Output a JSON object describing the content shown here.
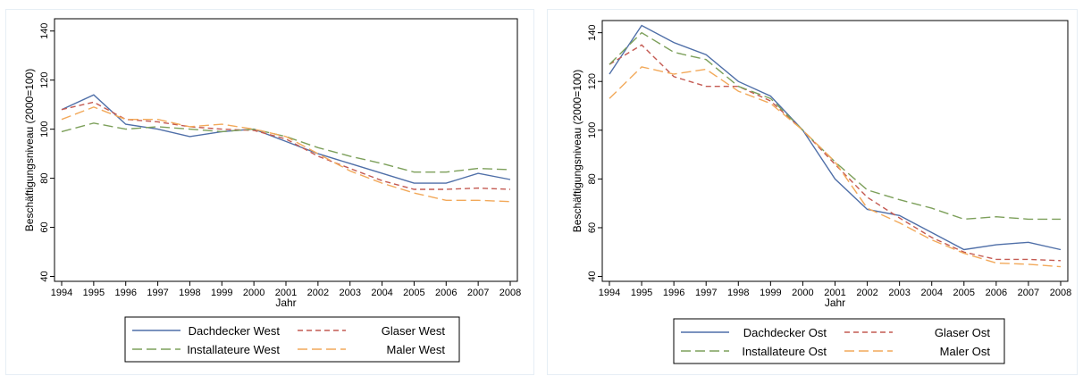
{
  "chart_data": [
    {
      "type": "line",
      "title": "",
      "xlabel": "Jahr",
      "ylabel": "Beschäftigungsniveau (2000=100)",
      "ylim": [
        38,
        145
      ],
      "yticks": [
        40,
        60,
        80,
        100,
        120,
        140
      ],
      "x": [
        1994,
        1995,
        1996,
        1997,
        1998,
        1999,
        2000,
        2001,
        2002,
        2003,
        2004,
        2005,
        2006,
        2007,
        2008
      ],
      "grid": false,
      "legend_position": "bottom",
      "series": [
        {
          "name": "Dachdecker West",
          "color": "#4f6fa8",
          "dash": "solid",
          "values": [
            108,
            114,
            102,
            100,
            97,
            99,
            100,
            95,
            90,
            86,
            82,
            78,
            78,
            82,
            79.5
          ]
        },
        {
          "name": "Glaser West",
          "color": "#c45a52",
          "dash": "short",
          "values": [
            108,
            111,
            104,
            103,
            101,
            100,
            99.5,
            96,
            89,
            84,
            79,
            75.5,
            75.5,
            76,
            75.5
          ]
        },
        {
          "name": "Installateure West",
          "color": "#7da05b",
          "dash": "long",
          "values": [
            99,
            102.5,
            100,
            101,
            100,
            99,
            100,
            97,
            92.5,
            89,
            86,
            82.5,
            82.5,
            84,
            83.5
          ]
        },
        {
          "name": "Maler West",
          "color": "#f2a95a",
          "dash": "long",
          "values": [
            104,
            109,
            104,
            104,
            101,
            102,
            100,
            97,
            90,
            83,
            78,
            74,
            71,
            71,
            70.5
          ]
        }
      ]
    },
    {
      "type": "line",
      "title": "",
      "xlabel": "Jahr",
      "ylabel": "Beschäftigungsniveau (2000=100)",
      "ylim": [
        38,
        145
      ],
      "yticks": [
        40,
        60,
        80,
        100,
        120,
        140
      ],
      "x": [
        1994,
        1995,
        1996,
        1997,
        1998,
        1999,
        2000,
        2001,
        2002,
        2003,
        2004,
        2005,
        2006,
        2007,
        2008
      ],
      "grid": false,
      "legend_position": "bottom",
      "series": [
        {
          "name": "Dachdecker Ost",
          "color": "#4f6fa8",
          "dash": "solid",
          "values": [
            123,
            143,
            136,
            131,
            120,
            114,
            100,
            80,
            67.5,
            65,
            58,
            51,
            53,
            54,
            51
          ]
        },
        {
          "name": "Glaser Ost",
          "color": "#c45a52",
          "dash": "short",
          "values": [
            127,
            135,
            122,
            118,
            118,
            112,
            100,
            86,
            72.5,
            64,
            56,
            50,
            47,
            47,
            46.5
          ]
        },
        {
          "name": "Installateure Ost",
          "color": "#7da05b",
          "dash": "long",
          "values": [
            127,
            140,
            132,
            129,
            118,
            113,
            100,
            87,
            75.5,
            71.5,
            68,
            63.5,
            64.5,
            63.5,
            63.5
          ]
        },
        {
          "name": "Maler Ost",
          "color": "#f2a95a",
          "dash": "long",
          "values": [
            113,
            126,
            123,
            125,
            116,
            111,
            100,
            87,
            68,
            62,
            55,
            49.5,
            45.5,
            45,
            44
          ]
        }
      ]
    }
  ]
}
